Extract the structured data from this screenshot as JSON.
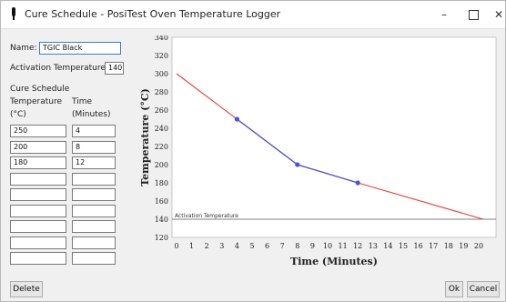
{
  "window": {
    "title": "Cure Schedule - PosiTest Oven Temperature Logger",
    "controls": {
      "minimize": "–",
      "close": "✕"
    }
  },
  "form": {
    "name_label": "Name:",
    "name_value": "TGIC Black",
    "activation_label": "Activation Temperature",
    "activation_value": "140",
    "cure_schedule_label": "Cure Schedule",
    "col_temperature": "Temperature",
    "col_temperature_unit": "(°C)",
    "col_time": "Time",
    "col_time_unit": "(Minutes)",
    "rows": [
      {
        "temperature": "250",
        "time": "4"
      },
      {
        "temperature": "200",
        "time": "8"
      },
      {
        "temperature": "180",
        "time": "12"
      },
      {
        "temperature": "",
        "time": ""
      },
      {
        "temperature": "",
        "time": ""
      },
      {
        "temperature": "",
        "time": ""
      },
      {
        "temperature": "",
        "time": ""
      },
      {
        "temperature": "",
        "time": ""
      },
      {
        "temperature": "",
        "time": ""
      }
    ]
  },
  "buttons": {
    "delete": "Delete",
    "ok": "Ok",
    "cancel": "Cancel"
  },
  "chart_data": {
    "type": "line",
    "xlabel": "Time (Minutes)",
    "ylabel": "Temperature (°C)",
    "xlim": [
      0,
      21
    ],
    "ylim": [
      120,
      340
    ],
    "xticks": [
      0,
      1,
      2,
      3,
      4,
      5,
      6,
      7,
      8,
      9,
      10,
      11,
      12,
      13,
      14,
      15,
      16,
      17,
      18,
      19,
      20
    ],
    "yticks": [
      120,
      140,
      160,
      180,
      200,
      220,
      240,
      260,
      280,
      300,
      320,
      340
    ],
    "grid": false,
    "series": [
      {
        "values_x": [
          0,
          4,
          8,
          12,
          20.3
        ],
        "values_y": [
          300,
          250,
          200,
          180,
          140
        ],
        "color": "#e8413a"
      },
      {
        "values_x": [
          4,
          8,
          12
        ],
        "values_y": [
          250,
          200,
          180
        ],
        "color": "#4a55d8"
      }
    ],
    "annotations": [
      {
        "text": "Activation Temperature",
        "y": 140
      }
    ]
  }
}
